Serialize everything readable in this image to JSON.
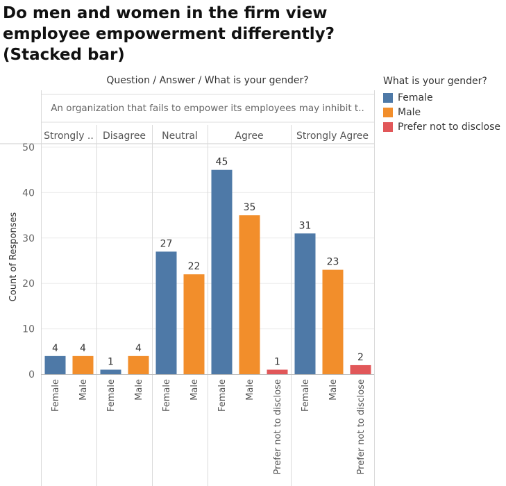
{
  "title_lines": [
    "Do men and women in the firm view",
    "employee empowerment differently?",
    "(Stacked bar)"
  ],
  "header": {
    "columns_path": "Question / Answer / What is your gender?",
    "question": "An organization that fails to empower its employees may inhibit t.."
  },
  "legend": {
    "title": "What is your gender?",
    "items": [
      {
        "label": "Female",
        "color": "#4e79a7"
      },
      {
        "label": "Male",
        "color": "#f28e2b"
      },
      {
        "label": "Prefer not to disclose",
        "color": "#e15759"
      }
    ]
  },
  "chart_data": {
    "type": "bar",
    "ylabel": "Count of Responses",
    "ylim": [
      0,
      50
    ],
    "y_ticks": [
      0,
      10,
      20,
      30,
      40,
      50
    ],
    "grid": true,
    "legend_position": "right",
    "answers": [
      {
        "label": "Strongly ..",
        "bars": [
          {
            "gender": "Female",
            "value": 4
          },
          {
            "gender": "Male",
            "value": 4
          }
        ]
      },
      {
        "label": "Disagree",
        "bars": [
          {
            "gender": "Female",
            "value": 1
          },
          {
            "gender": "Male",
            "value": 4
          }
        ]
      },
      {
        "label": "Neutral",
        "bars": [
          {
            "gender": "Female",
            "value": 27
          },
          {
            "gender": "Male",
            "value": 22
          }
        ]
      },
      {
        "label": "Agree",
        "bars": [
          {
            "gender": "Female",
            "value": 45
          },
          {
            "gender": "Male",
            "value": 35
          },
          {
            "gender": "Prefer not to disclose",
            "value": 1
          }
        ]
      },
      {
        "label": "Strongly Agree",
        "bars": [
          {
            "gender": "Female",
            "value": 31
          },
          {
            "gender": "Male",
            "value": 23
          },
          {
            "gender": "Prefer not to disclose",
            "value": 2
          }
        ]
      }
    ]
  }
}
